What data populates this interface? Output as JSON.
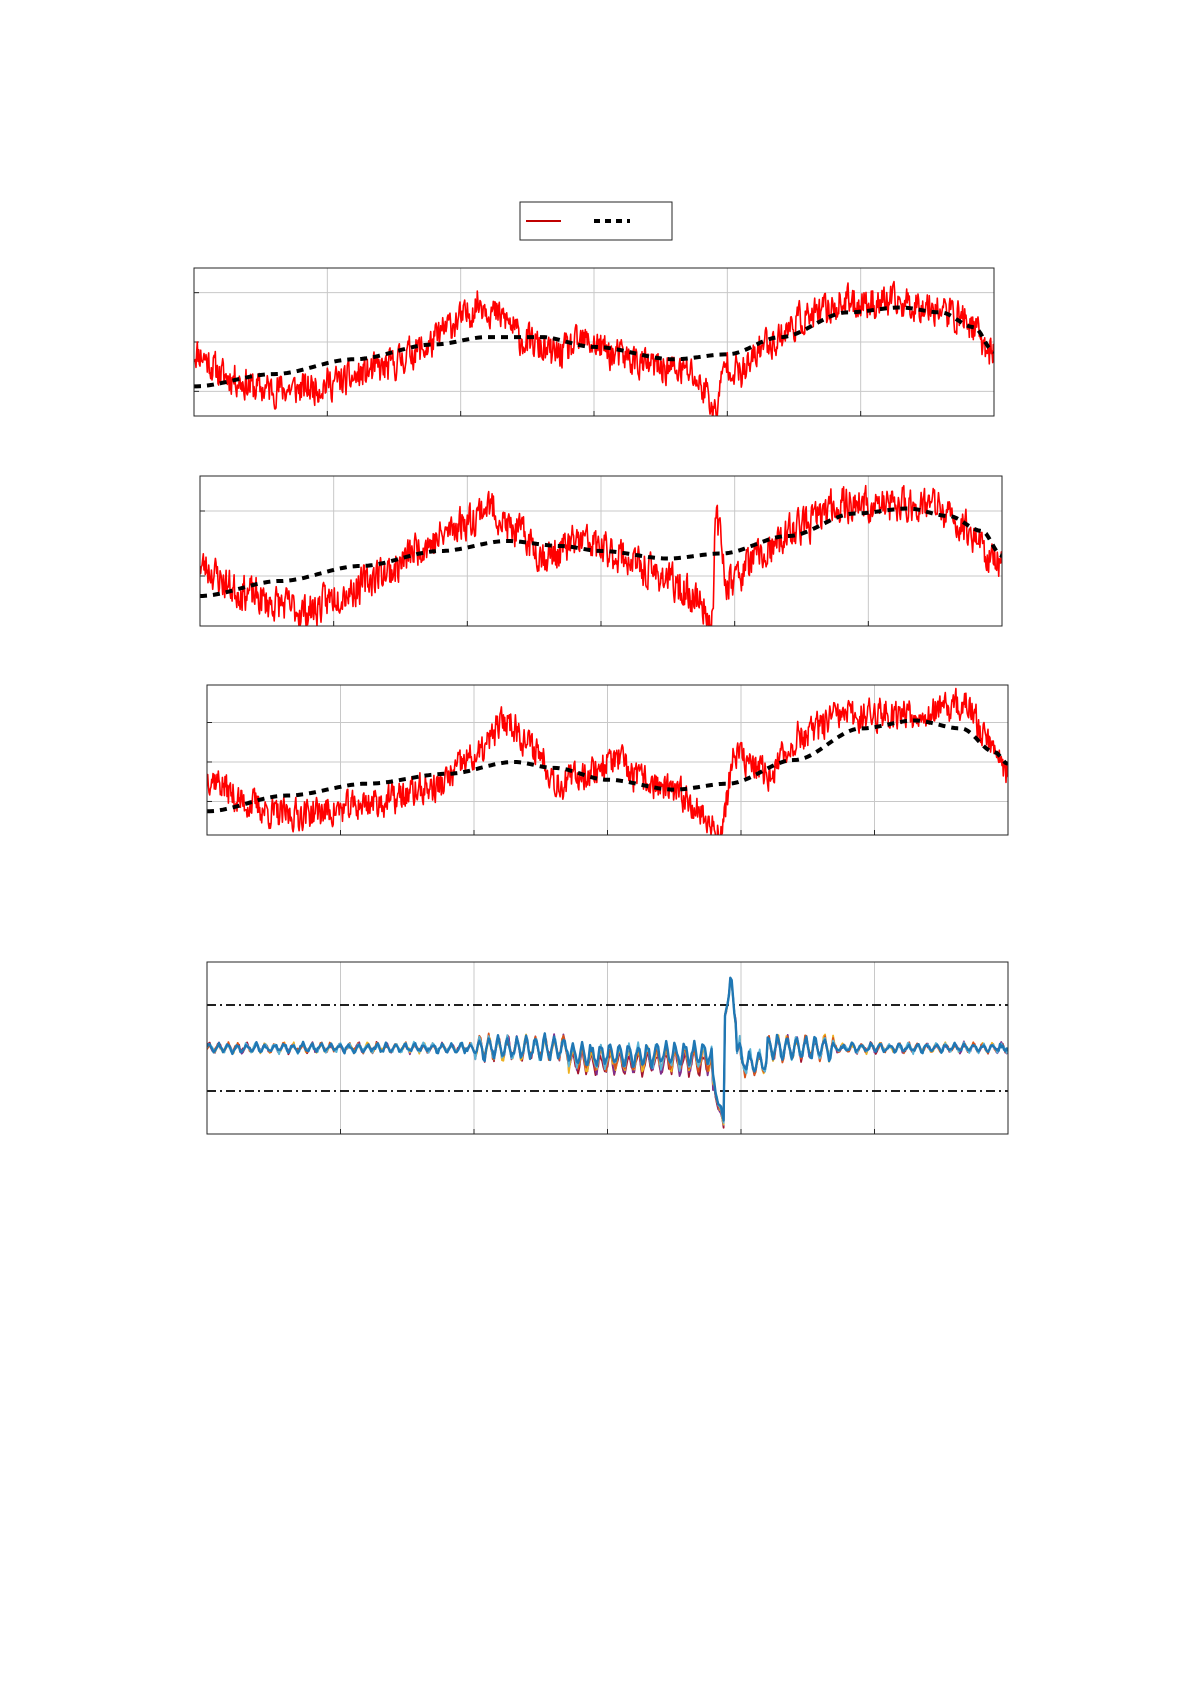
{
  "colors": {
    "measured": "#ff0000",
    "measured_legend": "#c00000",
    "trend": "#000000",
    "grid": "#c8c8c8",
    "axis": "#262626",
    "limit": "#000000",
    "multi": [
      "#1f77b4",
      "#5ab4d6",
      "#d95319",
      "#edb120",
      "#7e2f8e",
      "#a2142f"
    ]
  },
  "legend": {
    "entries": [
      "",
      ""
    ]
  },
  "chart_data": [
    {
      "type": "line",
      "xlim": [
        0,
        600
      ],
      "ylim": [
        0,
        30
      ],
      "xticks": [
        0,
        100,
        200,
        300,
        400,
        500,
        600
      ],
      "yticks": [
        5,
        15,
        25
      ],
      "grid": true,
      "legend": "top-center",
      "trend_knots": [
        [
          0,
          6
        ],
        [
          60,
          8.5
        ],
        [
          120,
          11.5
        ],
        [
          180,
          14.5
        ],
        [
          220,
          16
        ],
        [
          260,
          16
        ],
        [
          300,
          14
        ],
        [
          360,
          11.5
        ],
        [
          400,
          12.5
        ],
        [
          440,
          16
        ],
        [
          490,
          21
        ],
        [
          530,
          22
        ],
        [
          560,
          21
        ],
        [
          585,
          18
        ],
        [
          600,
          13
        ]
      ],
      "measured_knots": [
        [
          0,
          13
        ],
        [
          25,
          8
        ],
        [
          50,
          5.5
        ],
        [
          80,
          5.5
        ],
        [
          110,
          7
        ],
        [
          140,
          9.5
        ],
        [
          170,
          13.5
        ],
        [
          200,
          19.5
        ],
        [
          215,
          23
        ],
        [
          230,
          20
        ],
        [
          250,
          15
        ],
        [
          270,
          12.5
        ],
        [
          295,
          15
        ],
        [
          320,
          12
        ],
        [
          345,
          10
        ],
        [
          370,
          9
        ],
        [
          385,
          5
        ],
        [
          390,
          0.5
        ],
        [
          400,
          11
        ],
        [
          410,
          8.5
        ],
        [
          430,
          15
        ],
        [
          460,
          20
        ],
        [
          490,
          23
        ],
        [
          520,
          23
        ],
        [
          550,
          22.5
        ],
        [
          575,
          20
        ],
        [
          600,
          13
        ]
      ],
      "noise_amp": 3.0,
      "seed": 11,
      "series": [
        {
          "values_from": "measured_knots"
        },
        {
          "values_from": "trend_knots"
        }
      ]
    },
    {
      "type": "line",
      "xlim": [
        0,
        600
      ],
      "ylim": [
        0,
        30
      ],
      "xticks": [
        0,
        100,
        200,
        300,
        400,
        500,
        600
      ],
      "yticks": [
        10,
        23
      ],
      "grid": true,
      "trend_knots": [
        [
          0,
          6
        ],
        [
          60,
          9
        ],
        [
          120,
          12
        ],
        [
          180,
          15
        ],
        [
          230,
          17
        ],
        [
          270,
          16
        ],
        [
          300,
          15
        ],
        [
          350,
          13.5
        ],
        [
          390,
          14.5
        ],
        [
          440,
          18
        ],
        [
          490,
          22.5
        ],
        [
          530,
          23.5
        ],
        [
          560,
          22
        ],
        [
          585,
          19
        ],
        [
          600,
          14
        ]
      ],
      "measured_knots": [
        [
          0,
          12
        ],
        [
          30,
          7
        ],
        [
          55,
          4.5
        ],
        [
          80,
          3
        ],
        [
          110,
          7
        ],
        [
          140,
          11
        ],
        [
          170,
          16.5
        ],
        [
          200,
          21
        ],
        [
          215,
          24
        ],
        [
          235,
          19
        ],
        [
          260,
          14
        ],
        [
          285,
          17
        ],
        [
          310,
          14.5
        ],
        [
          340,
          10.5
        ],
        [
          370,
          6
        ],
        [
          383,
          1.5
        ],
        [
          386,
          21
        ],
        [
          395,
          9
        ],
        [
          420,
          14
        ],
        [
          450,
          20
        ],
        [
          480,
          24.5
        ],
        [
          515,
          24
        ],
        [
          545,
          24.5
        ],
        [
          570,
          20
        ],
        [
          600,
          12
        ]
      ],
      "noise_amp": 3.2,
      "seed": 23,
      "series": [
        {
          "values_from": "measured_knots"
        },
        {
          "values_from": "trend_knots"
        }
      ]
    },
    {
      "type": "line",
      "xlim": [
        0,
        600
      ],
      "ylim": [
        0,
        38
      ],
      "xticks": [
        0,
        100,
        200,
        300,
        400,
        500,
        600
      ],
      "yticks": [
        8.5,
        18.5,
        28.5,
        38
      ],
      "grid": true,
      "trend_knots": [
        [
          0,
          6
        ],
        [
          60,
          10
        ],
        [
          120,
          13
        ],
        [
          180,
          15.5
        ],
        [
          230,
          18.5
        ],
        [
          260,
          17
        ],
        [
          300,
          14
        ],
        [
          350,
          11.5
        ],
        [
          390,
          13
        ],
        [
          440,
          19
        ],
        [
          490,
          27
        ],
        [
          530,
          29
        ],
        [
          565,
          27
        ],
        [
          590,
          21
        ],
        [
          600,
          18
        ]
      ],
      "measured_knots": [
        [
          0,
          15
        ],
        [
          30,
          8
        ],
        [
          55,
          5
        ],
        [
          90,
          6
        ],
        [
          130,
          8.5
        ],
        [
          170,
          12
        ],
        [
          200,
          19.5
        ],
        [
          225,
          29
        ],
        [
          245,
          22
        ],
        [
          265,
          13
        ],
        [
          285,
          16
        ],
        [
          305,
          19
        ],
        [
          325,
          14
        ],
        [
          355,
          10
        ],
        [
          385,
          1
        ],
        [
          395,
          20
        ],
        [
          420,
          15.5
        ],
        [
          445,
          25
        ],
        [
          475,
          30
        ],
        [
          515,
          31
        ],
        [
          545,
          31
        ],
        [
          565,
          33
        ],
        [
          590,
          23
        ],
        [
          600,
          16
        ]
      ],
      "noise_amp": 3.6,
      "seed": 37,
      "series": [
        {
          "values_from": "measured_knots"
        },
        {
          "values_from": "trend_knots"
        }
      ]
    },
    {
      "type": "line",
      "xlim": [
        0,
        600
      ],
      "ylim": [
        -4,
        4
      ],
      "xticks": [
        0,
        100,
        200,
        300,
        400,
        500,
        600
      ],
      "yticks": [],
      "grid": true,
      "limits": [
        2,
        -2
      ],
      "series": [
        {
          "style": "multi-band",
          "count": 6,
          "seed": 51
        }
      ]
    }
  ]
}
